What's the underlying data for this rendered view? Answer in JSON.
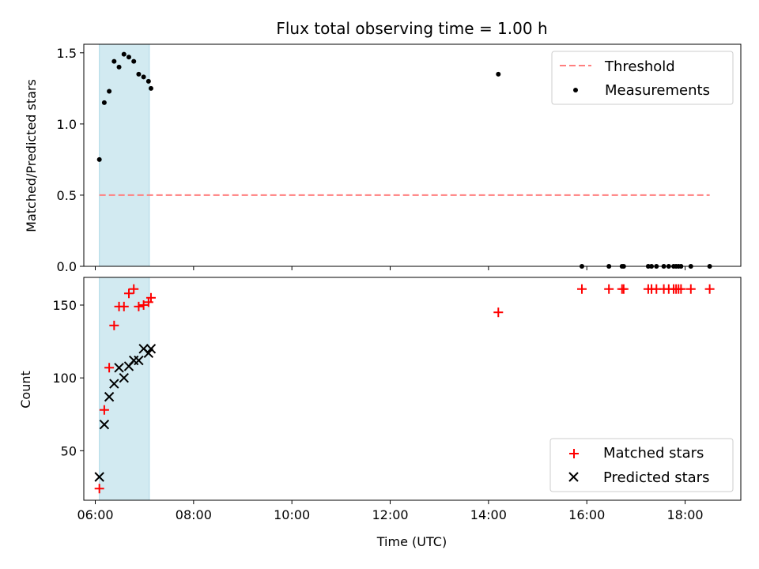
{
  "title": "Flux total observing time = 1.00 h",
  "colors": {
    "threshold": "#ff7f7f",
    "measurements": "#000000",
    "matched": "#ff0000",
    "predicted": "#000000",
    "span": "#add8e6"
  },
  "chart_data": [
    {
      "type": "scatter",
      "ylabel": "Matched/Predicted stars",
      "xlim": [
        "05:46",
        "19:08"
      ],
      "ylim": [
        0,
        1.56
      ],
      "yticks": [
        {
          "value": 0,
          "label": "0.0"
        },
        {
          "value": 0.5,
          "label": "0.5"
        },
        {
          "value": 1.0,
          "label": "1.0"
        },
        {
          "value": 1.5,
          "label": "1.5"
        }
      ],
      "xticks": [
        "06:00",
        "08:00",
        "10:00",
        "12:00",
        "14:00",
        "16:00",
        "18:00"
      ],
      "highlight_span": [
        "06:05",
        "07:06"
      ],
      "legend": {
        "placement": "upper right",
        "entries": [
          "Threshold",
          "Measurements"
        ]
      },
      "threshold": {
        "name": "Threshold",
        "x": [
          "06:05",
          "18:30"
        ],
        "value": 0.5
      },
      "series": [
        {
          "name": "Measurements",
          "x": [
            "06:05",
            "06:11",
            "06:17",
            "06:23",
            "06:29",
            "06:35",
            "06:41",
            "06:47",
            "06:53",
            "06:59",
            "07:05",
            "07:08",
            "14:12",
            "15:54",
            "16:27",
            "16:43",
            "16:45",
            "17:15",
            "17:19",
            "17:25",
            "17:34",
            "17:40",
            "17:46",
            "17:49",
            "17:52",
            "17:55",
            "18:07",
            "18:30"
          ],
          "y": [
            0.75,
            1.15,
            1.23,
            1.44,
            1.4,
            1.49,
            1.47,
            1.44,
            1.35,
            1.33,
            1.3,
            1.25,
            1.35,
            0,
            0,
            0,
            0,
            0,
            0,
            0,
            0,
            0,
            0,
            0,
            0,
            0,
            0,
            0
          ]
        }
      ]
    },
    {
      "type": "scatter",
      "xlabel": "Time (UTC)",
      "ylabel": "Count",
      "xlim": [
        "05:46",
        "19:08"
      ],
      "ylim": [
        16,
        169
      ],
      "yticks": [
        {
          "value": 50,
          "label": "50"
        },
        {
          "value": 100,
          "label": "100"
        },
        {
          "value": 150,
          "label": "150"
        }
      ],
      "xticks": [
        "06:00",
        "08:00",
        "10:00",
        "12:00",
        "14:00",
        "16:00",
        "18:00"
      ],
      "highlight_span": [
        "06:05",
        "07:06"
      ],
      "legend": {
        "placement": "lower right",
        "entries": [
          "Matched stars",
          "Predicted stars"
        ]
      },
      "series": [
        {
          "name": "Matched stars",
          "marker": "plus",
          "x": [
            "06:05",
            "06:11",
            "06:17",
            "06:23",
            "06:29",
            "06:35",
            "06:41",
            "06:47",
            "06:53",
            "06:59",
            "07:05",
            "07:08",
            "14:12",
            "15:54",
            "16:27",
            "16:43",
            "16:45",
            "17:15",
            "17:19",
            "17:25",
            "17:34",
            "17:40",
            "17:46",
            "17:49",
            "17:52",
            "17:55",
            "18:07",
            "18:30"
          ],
          "y": [
            24,
            78,
            107,
            136,
            149,
            149,
            158,
            161,
            149,
            150,
            152,
            155,
            145,
            161,
            161,
            161,
            161,
            161,
            161,
            161,
            161,
            161,
            161,
            161,
            161,
            161,
            161,
            161
          ]
        },
        {
          "name": "Predicted stars",
          "marker": "x",
          "x": [
            "06:05",
            "06:11",
            "06:17",
            "06:23",
            "06:29",
            "06:35",
            "06:41",
            "06:47",
            "06:53",
            "06:59",
            "07:05",
            "07:08"
          ],
          "y": [
            32,
            68,
            87,
            96,
            107,
            100,
            108,
            112,
            112,
            120,
            117,
            120
          ]
        }
      ]
    }
  ]
}
